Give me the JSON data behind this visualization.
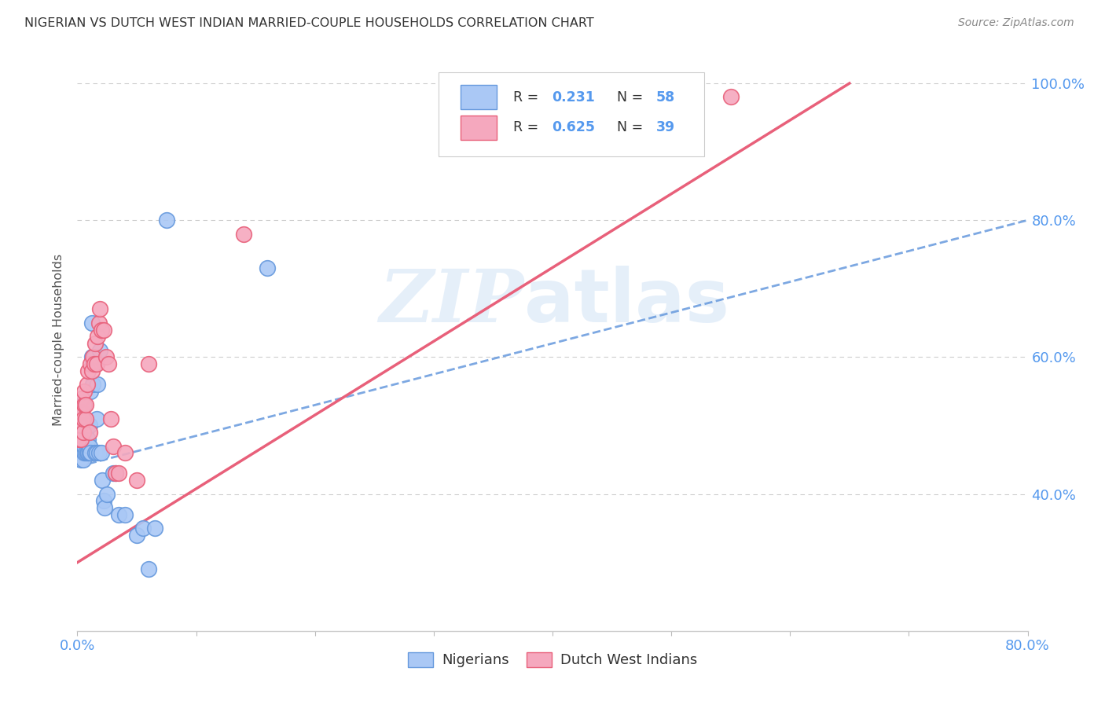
{
  "title": "NIGERIAN VS DUTCH WEST INDIAN MARRIED-COUPLE HOUSEHOLDS CORRELATION CHART",
  "source": "Source: ZipAtlas.com",
  "ylabel": "Married-couple Households",
  "legend_bottom1": "Nigerians",
  "legend_bottom2": "Dutch West Indians",
  "nigerian_color": "#aac8f5",
  "dutch_color": "#f5a8be",
  "line_nigerian_color": "#6699dd",
  "line_dutch_color": "#e8607a",
  "axis_label_color": "#5599ee",
  "grid_color": "#cccccc",
  "background_color": "#ffffff",
  "title_color": "#333333",
  "xmin": 0.0,
  "xmax": 0.8,
  "ymin": 0.2,
  "ymax": 1.05,
  "nig_line_x0": 0.0,
  "nig_line_y0": 0.44,
  "nig_line_x1": 0.8,
  "nig_line_y1": 0.8,
  "dwi_line_x0": 0.0,
  "dwi_line_y0": 0.3,
  "dwi_line_x1": 0.65,
  "dwi_line_y1": 1.0,
  "nigerian_pts_x": [
    0.001,
    0.001,
    0.002,
    0.002,
    0.002,
    0.003,
    0.003,
    0.003,
    0.004,
    0.004,
    0.004,
    0.005,
    0.005,
    0.005,
    0.005,
    0.006,
    0.006,
    0.006,
    0.007,
    0.007,
    0.007,
    0.008,
    0.008,
    0.008,
    0.009,
    0.009,
    0.01,
    0.01,
    0.01,
    0.011,
    0.011,
    0.012,
    0.012,
    0.013,
    0.013,
    0.014,
    0.015,
    0.015,
    0.016,
    0.016,
    0.017,
    0.018,
    0.019,
    0.02,
    0.021,
    0.022,
    0.023,
    0.025,
    0.03,
    0.032,
    0.035,
    0.04,
    0.05,
    0.055,
    0.06,
    0.065,
    0.075,
    0.16
  ],
  "nigerian_pts_y": [
    0.47,
    0.49,
    0.46,
    0.5,
    0.51,
    0.45,
    0.48,
    0.5,
    0.49,
    0.51,
    0.53,
    0.45,
    0.47,
    0.48,
    0.5,
    0.46,
    0.47,
    0.49,
    0.46,
    0.48,
    0.49,
    0.46,
    0.48,
    0.5,
    0.46,
    0.48,
    0.46,
    0.47,
    0.5,
    0.46,
    0.55,
    0.6,
    0.65,
    0.56,
    0.59,
    0.6,
    0.46,
    0.59,
    0.46,
    0.51,
    0.56,
    0.46,
    0.61,
    0.46,
    0.42,
    0.39,
    0.38,
    0.4,
    0.43,
    0.43,
    0.37,
    0.37,
    0.34,
    0.35,
    0.29,
    0.35,
    0.8,
    0.73
  ],
  "dutch_pts_x": [
    0.001,
    0.001,
    0.002,
    0.002,
    0.003,
    0.003,
    0.004,
    0.004,
    0.005,
    0.005,
    0.006,
    0.006,
    0.007,
    0.007,
    0.008,
    0.009,
    0.01,
    0.011,
    0.012,
    0.013,
    0.014,
    0.015,
    0.016,
    0.017,
    0.018,
    0.019,
    0.02,
    0.022,
    0.024,
    0.026,
    0.028,
    0.03,
    0.032,
    0.035,
    0.04,
    0.05,
    0.06,
    0.55,
    0.14
  ],
  "dutch_pts_y": [
    0.48,
    0.51,
    0.5,
    0.52,
    0.48,
    0.5,
    0.52,
    0.54,
    0.49,
    0.51,
    0.53,
    0.55,
    0.51,
    0.53,
    0.56,
    0.58,
    0.49,
    0.59,
    0.58,
    0.6,
    0.59,
    0.62,
    0.59,
    0.63,
    0.65,
    0.67,
    0.64,
    0.64,
    0.6,
    0.59,
    0.51,
    0.47,
    0.43,
    0.43,
    0.46,
    0.42,
    0.59,
    0.98,
    0.78
  ]
}
